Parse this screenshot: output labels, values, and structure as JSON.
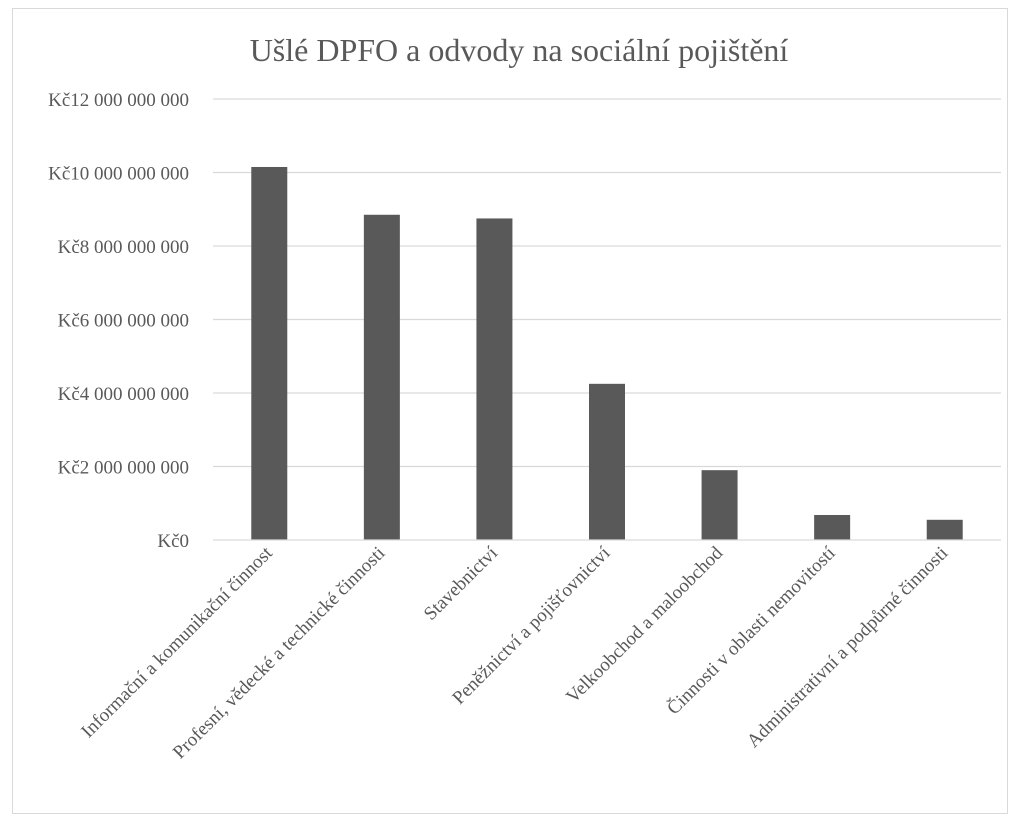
{
  "chart_data": {
    "type": "bar",
    "title": "Ušlé DPFO a odvody na sociální pojištění",
    "xlabel": "",
    "ylabel": "",
    "ylim": [
      0,
      12000000000
    ],
    "yticks": [
      0,
      2000000000,
      4000000000,
      6000000000,
      8000000000,
      10000000000,
      12000000000
    ],
    "ytick_labels": [
      "Kč0",
      "Kč2 000 000 000",
      "Kč4 000 000 000",
      "Kč6 000 000 000",
      "Kč8 000 000 000",
      "Kč10 000 000 000",
      "Kč12 000 000 000"
    ],
    "categories": [
      "Informační a komunikační činnost",
      "Profesní, vědecké a technické činnosti",
      "Stavebnictví",
      "Peněžnictví a pojišťovnictví",
      "Velkoobchod a maloobchod",
      "Činnosti v oblasti nemovitostí",
      "Administrativní a podpůrné činnosti"
    ],
    "values": [
      10150000000,
      8850000000,
      8750000000,
      4250000000,
      1900000000,
      680000000,
      550000000
    ],
    "grid": true,
    "legend": "none",
    "bar_color": "#595959"
  }
}
